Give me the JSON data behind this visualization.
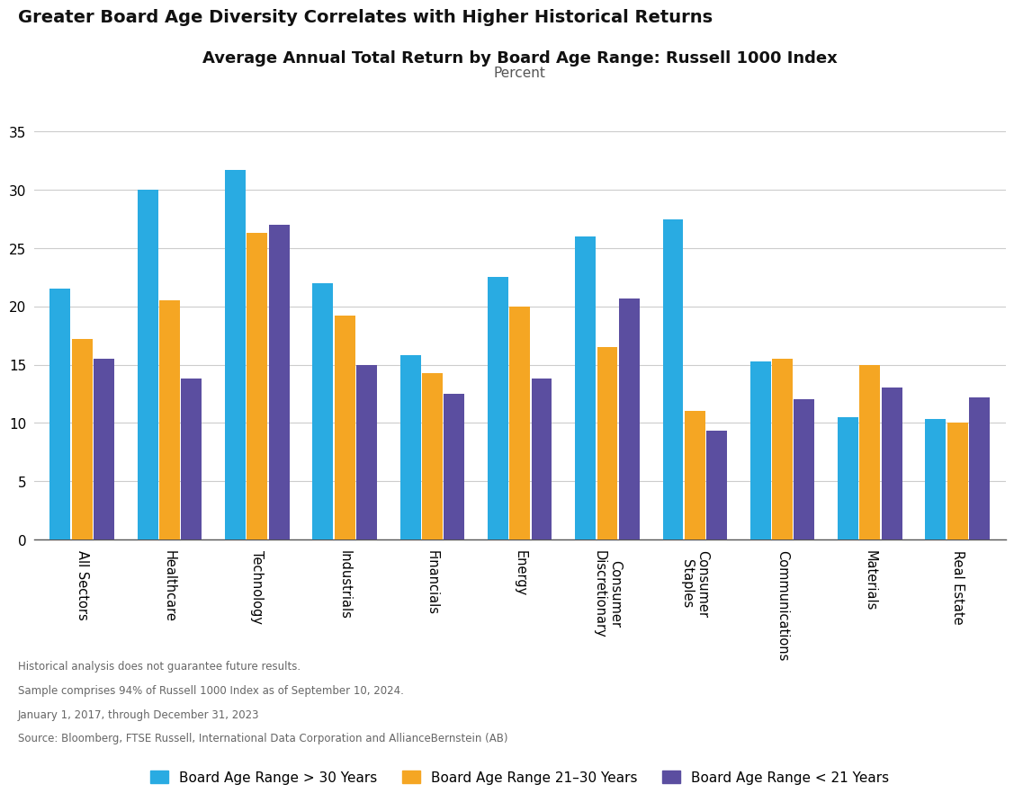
{
  "title": "Greater Board Age Diversity Correlates with Higher Historical Returns",
  "chart_title": "Average Annual Total Return by Board Age Range: Russell 1000 Index",
  "chart_subtitle": "Percent",
  "categories": [
    "All Sectors",
    "Healthcare",
    "Technology",
    "Industrials",
    "Financials",
    "Energy",
    "Consumer\nDiscretionary",
    "Consumer\nStaples",
    "Communications",
    "Materials",
    "Real Estate"
  ],
  "series": {
    "gt30": {
      "label": "Board Age Range > 30 Years",
      "color": "#29ABE2",
      "values": [
        21.5,
        30.0,
        31.7,
        22.0,
        15.8,
        22.5,
        26.0,
        27.5,
        15.3,
        10.5,
        10.3
      ]
    },
    "r21_30": {
      "label": "Board Age Range 21–30 Years",
      "color": "#F5A623",
      "values": [
        17.2,
        20.5,
        26.3,
        19.2,
        14.3,
        20.0,
        16.5,
        11.0,
        15.5,
        15.0,
        10.0
      ]
    },
    "lt21": {
      "label": "Board Age Range < 21 Years",
      "color": "#5B4EA0",
      "values": [
        15.5,
        13.8,
        27.0,
        15.0,
        12.5,
        13.8,
        20.7,
        9.3,
        12.0,
        13.0,
        12.2
      ]
    }
  },
  "ylim": [
    0,
    37
  ],
  "yticks": [
    0,
    5,
    10,
    15,
    20,
    25,
    30,
    35
  ],
  "footnotes": [
    "Historical analysis does not guarantee future results.",
    "Sample comprises 94% of Russell 1000 Index as of September 10, 2024.",
    "January 1, 2017, through December 31, 2023",
    "Source: Bloomberg, FTSE Russell, International Data Corporation and AllianceBernstein (AB)"
  ],
  "bg_color": "#FFFFFF",
  "grid_color": "#CCCCCC",
  "bar_width": 0.25
}
